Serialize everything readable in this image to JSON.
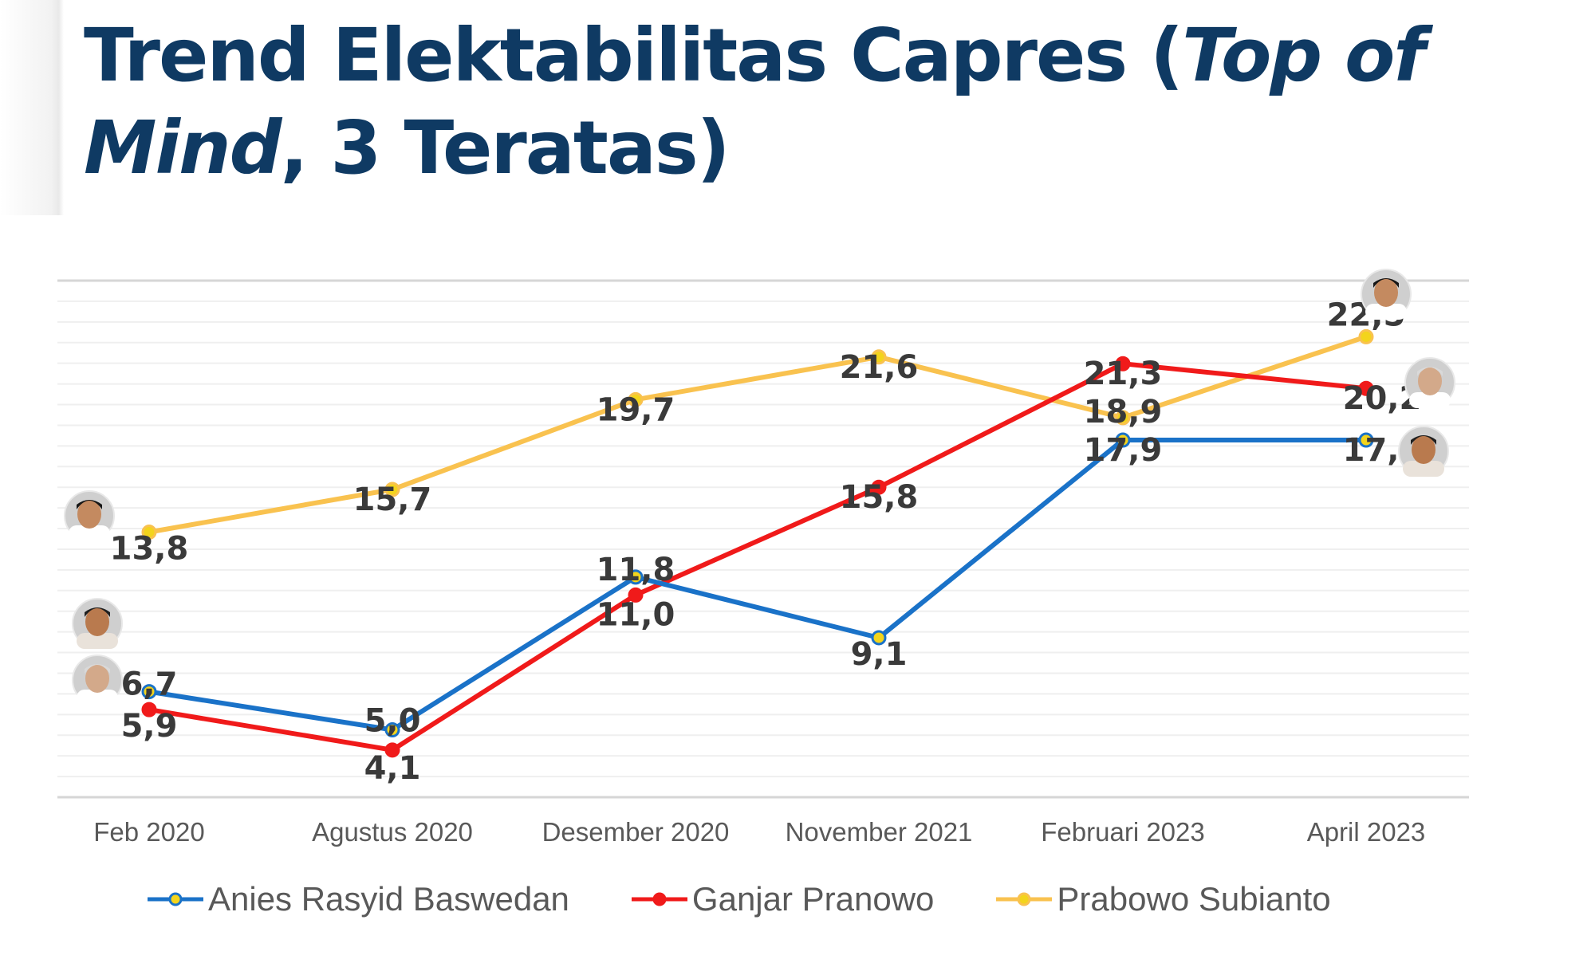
{
  "title": {
    "part1": "Trend Elektabilitas Capres (",
    "italic1": "Top of Mind",
    "part2": ", 3 Teratas)"
  },
  "colors": {
    "anies": "#1a72c8",
    "ganjar": "#f01a1a",
    "prabowo": "#f9c24f",
    "marker_fill": "#f3d41c",
    "title": "#0f3a63"
  },
  "chart_data": {
    "type": "line",
    "title": "Trend Elektabilitas Capres (Top of Mind, 3 Teratas)",
    "categories": [
      "Feb 2020",
      "Agustus 2020",
      "Desember 2020",
      "November 2021",
      "Februari 2023",
      "April 2023"
    ],
    "series": [
      {
        "name": "Anies Rasyid Baswedan",
        "color": "#1a72c8",
        "values": [
          6.7,
          5.0,
          11.8,
          9.1,
          17.9,
          17.9
        ],
        "labels": [
          "6,7",
          "5,0",
          "11,8",
          "9,1",
          "17,9",
          "17,9"
        ],
        "avatar_icon": "anies-avatar-icon"
      },
      {
        "name": "Ganjar Pranowo",
        "color": "#f01a1a",
        "values": [
          5.9,
          4.1,
          11.0,
          15.8,
          21.3,
          20.2
        ],
        "labels": [
          "5,9",
          "4,1",
          "11,0",
          "15,8",
          "21,3",
          "20,2"
        ],
        "avatar_icon": "ganjar-avatar-icon"
      },
      {
        "name": "Prabowo Subianto",
        "color": "#f9c24f",
        "values": [
          13.8,
          15.7,
          19.7,
          21.6,
          18.9,
          22.5
        ],
        "labels": [
          "13,8",
          "15,7",
          "19,7",
          "21,6",
          "18,9",
          "22,5"
        ],
        "avatar_icon": "prabowo-avatar-icon"
      }
    ],
    "ylim": [
      0,
      25
    ],
    "grid": true,
    "legend": "bottom",
    "xlabel": "",
    "ylabel": ""
  }
}
